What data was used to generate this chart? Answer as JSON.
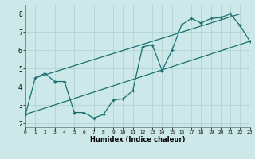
{
  "xlabel": "Humidex (Indice chaleur)",
  "xlim": [
    0,
    23
  ],
  "ylim": [
    1.8,
    8.5
  ],
  "yticks": [
    2,
    3,
    4,
    5,
    6,
    7,
    8
  ],
  "xticks": [
    0,
    1,
    2,
    3,
    4,
    5,
    6,
    7,
    8,
    9,
    10,
    11,
    12,
    13,
    14,
    15,
    16,
    17,
    18,
    19,
    20,
    21,
    22,
    23
  ],
  "background_color": "#cce8e8",
  "line_color": "#1a7070",
  "grid_color": "#aed0d0",
  "zigzag_x": [
    0,
    1,
    2,
    3,
    4,
    5,
    6,
    7,
    8,
    9,
    10,
    11,
    12,
    13,
    14,
    15,
    16,
    17,
    18,
    19,
    20,
    21,
    22,
    23
  ],
  "zigzag_y": [
    2.5,
    4.5,
    4.75,
    4.3,
    4.3,
    2.6,
    2.6,
    2.3,
    2.5,
    3.3,
    3.35,
    3.8,
    6.2,
    6.3,
    4.9,
    6.0,
    7.4,
    7.75,
    7.5,
    7.75,
    7.8,
    8.0,
    7.35,
    6.5
  ],
  "upper_line_x": [
    1,
    22
  ],
  "upper_line_y": [
    4.5,
    8.0
  ],
  "lower_line_x": [
    0,
    23
  ],
  "lower_line_y": [
    2.5,
    6.5
  ]
}
